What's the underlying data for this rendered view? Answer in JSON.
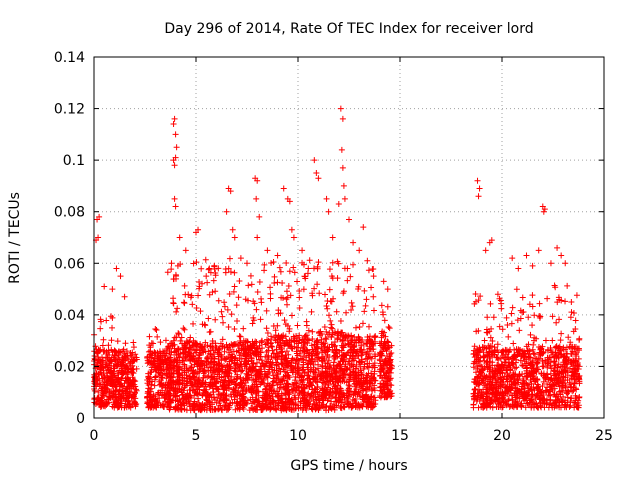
{
  "chart_data": {
    "type": "scatter",
    "title": "Day 296 of 2014, Rate Of TEC Index for receiver lord",
    "xlabel": "GPS time / hours",
    "ylabel": "ROTI / TECUs",
    "xlim": [
      0,
      25
    ],
    "ylim": [
      0,
      0.14
    ],
    "xticks": [
      0,
      5,
      10,
      15,
      20,
      25
    ],
    "yticks": [
      0,
      0.02,
      0.04,
      0.06,
      0.08,
      0.1,
      0.12,
      0.14
    ],
    "xtick_labels": [
      "0",
      "5",
      "10",
      "15",
      "20",
      "25"
    ],
    "ytick_labels": [
      "0",
      "0.02",
      "0.04",
      "0.06",
      "0.08",
      "0.1",
      "0.12",
      "0.14"
    ],
    "grid": true,
    "marker": "+",
    "color": "#ff0000",
    "series": [
      {
        "name": "ROTI",
        "points": [
          [
            0.1,
            0.069
          ],
          [
            0.15,
            0.077
          ],
          [
            0.2,
            0.07
          ],
          [
            0.25,
            0.078
          ],
          [
            0.5,
            0.051
          ],
          [
            0.9,
            0.05
          ],
          [
            1.1,
            0.058
          ],
          [
            1.3,
            0.055
          ],
          [
            1.5,
            0.047
          ],
          [
            3.8,
            0.06
          ],
          [
            3.9,
            0.114
          ],
          [
            3.95,
            0.116
          ],
          [
            4.0,
            0.11
          ],
          [
            4.05,
            0.105
          ],
          [
            3.9,
            0.1
          ],
          [
            3.95,
            0.098
          ],
          [
            4.0,
            0.101
          ],
          [
            3.95,
            0.085
          ],
          [
            4.0,
            0.082
          ],
          [
            4.2,
            0.07
          ],
          [
            4.5,
            0.065
          ],
          [
            5.0,
            0.072
          ],
          [
            5.1,
            0.073
          ],
          [
            5.5,
            0.055
          ],
          [
            6.6,
            0.089
          ],
          [
            6.7,
            0.088
          ],
          [
            6.5,
            0.08
          ],
          [
            6.8,
            0.073
          ],
          [
            6.9,
            0.07
          ],
          [
            7.2,
            0.062
          ],
          [
            7.5,
            0.06
          ],
          [
            7.9,
            0.093
          ],
          [
            8.0,
            0.092
          ],
          [
            7.95,
            0.085
          ],
          [
            8.1,
            0.078
          ],
          [
            8.0,
            0.07
          ],
          [
            8.5,
            0.065
          ],
          [
            9.0,
            0.063
          ],
          [
            9.3,
            0.089
          ],
          [
            9.5,
            0.085
          ],
          [
            9.6,
            0.084
          ],
          [
            9.7,
            0.073
          ],
          [
            9.8,
            0.07
          ],
          [
            10.2,
            0.065
          ],
          [
            10.8,
            0.1
          ],
          [
            10.9,
            0.095
          ],
          [
            11.0,
            0.093
          ],
          [
            11.4,
            0.085
          ],
          [
            11.5,
            0.08
          ],
          [
            11.7,
            0.07
          ],
          [
            12.1,
            0.12
          ],
          [
            12.2,
            0.116
          ],
          [
            12.15,
            0.104
          ],
          [
            12.2,
            0.097
          ],
          [
            12.25,
            0.09
          ],
          [
            12.3,
            0.085
          ],
          [
            12.0,
            0.083
          ],
          [
            12.5,
            0.077
          ],
          [
            12.7,
            0.068
          ],
          [
            13.0,
            0.065
          ],
          [
            13.2,
            0.074
          ],
          [
            13.4,
            0.061
          ],
          [
            14.2,
            0.053
          ],
          [
            14.4,
            0.05
          ],
          [
            18.8,
            0.092
          ],
          [
            18.9,
            0.089
          ],
          [
            18.85,
            0.086
          ],
          [
            19.2,
            0.065
          ],
          [
            19.4,
            0.068
          ],
          [
            19.5,
            0.069
          ],
          [
            19.8,
            0.048
          ],
          [
            20.5,
            0.062
          ],
          [
            20.8,
            0.058
          ],
          [
            21.2,
            0.063
          ],
          [
            21.5,
            0.059
          ],
          [
            21.8,
            0.065
          ],
          [
            22.0,
            0.082
          ],
          [
            22.05,
            0.08
          ],
          [
            22.1,
            0.081
          ],
          [
            22.4,
            0.06
          ],
          [
            22.7,
            0.066
          ],
          [
            22.9,
            0.063
          ],
          [
            23.1,
            0.06
          ],
          [
            23.4,
            0.045
          ]
        ]
      }
    ],
    "dense_segments": [
      {
        "x_start": 0.0,
        "x_end": 1.05,
        "base": 0.015,
        "peak": 0.04,
        "low": 0.004,
        "n": 260
      },
      {
        "x_start": 1.05,
        "x_end": 2.1,
        "base": 0.014,
        "peak": 0.03,
        "low": 0.004,
        "n": 240
      },
      {
        "x_start": 2.6,
        "x_end": 3.6,
        "base": 0.014,
        "peak": 0.035,
        "low": 0.004,
        "n": 220
      },
      {
        "x_start": 3.6,
        "x_end": 5.0,
        "base": 0.018,
        "peak": 0.06,
        "low": 0.003,
        "n": 380
      },
      {
        "x_start": 5.0,
        "x_end": 6.8,
        "base": 0.017,
        "peak": 0.062,
        "low": 0.003,
        "n": 420
      },
      {
        "x_start": 6.8,
        "x_end": 8.6,
        "base": 0.018,
        "peak": 0.06,
        "low": 0.003,
        "n": 430
      },
      {
        "x_start": 8.6,
        "x_end": 10.4,
        "base": 0.02,
        "peak": 0.062,
        "low": 0.003,
        "n": 450
      },
      {
        "x_start": 10.4,
        "x_end": 12.2,
        "base": 0.022,
        "peak": 0.062,
        "low": 0.003,
        "n": 460
      },
      {
        "x_start": 12.2,
        "x_end": 13.8,
        "base": 0.02,
        "peak": 0.06,
        "low": 0.004,
        "n": 400
      },
      {
        "x_start": 14.0,
        "x_end": 14.6,
        "base": 0.018,
        "peak": 0.045,
        "low": 0.008,
        "n": 160
      },
      {
        "x_start": 18.6,
        "x_end": 20.0,
        "base": 0.016,
        "peak": 0.052,
        "low": 0.004,
        "n": 330
      },
      {
        "x_start": 20.0,
        "x_end": 21.8,
        "base": 0.015,
        "peak": 0.05,
        "low": 0.004,
        "n": 380
      },
      {
        "x_start": 21.8,
        "x_end": 23.8,
        "base": 0.016,
        "peak": 0.052,
        "low": 0.004,
        "n": 400
      }
    ]
  }
}
